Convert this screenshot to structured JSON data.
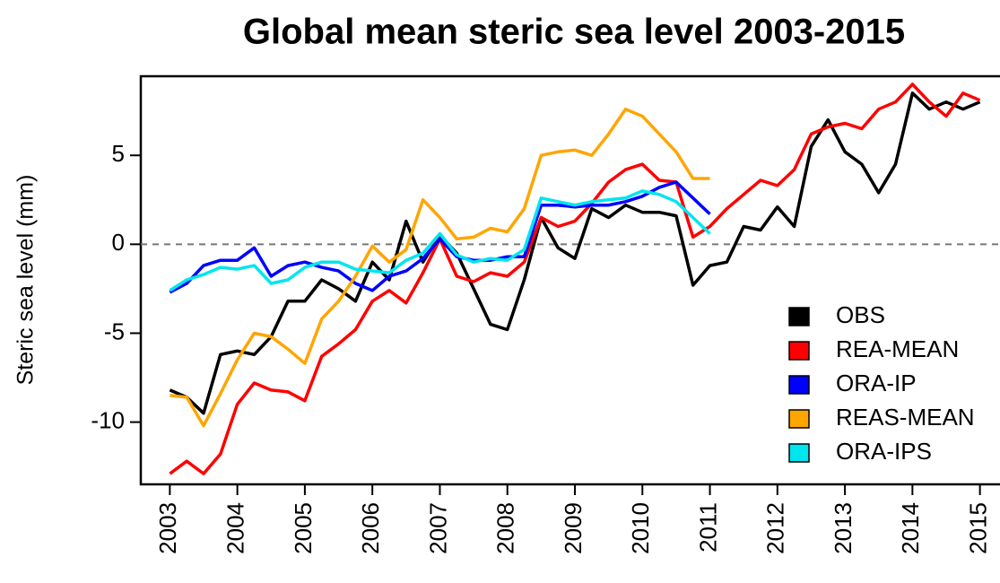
{
  "chart_data": {
    "type": "line",
    "title": "Global mean steric sea level 2003-2015",
    "y_label": "Steric sea level (mm)",
    "x": [
      2003,
      2003.25,
      2003.5,
      2003.75,
      2004,
      2004.25,
      2004.5,
      2004.75,
      2005,
      2005.25,
      2005.5,
      2005.75,
      2006,
      2006.25,
      2006.5,
      2006.75,
      2007,
      2007.25,
      2007.5,
      2007.75,
      2008,
      2008.25,
      2008.5,
      2008.75,
      2009,
      2009.25,
      2009.5,
      2009.75,
      2010,
      2010.25,
      2010.5,
      2010.75,
      2011,
      2011.25,
      2011.5,
      2011.75,
      2012,
      2012.25,
      2012.5,
      2012.75,
      2013,
      2013.25,
      2013.5,
      2013.75,
      2014,
      2014.25,
      2014.5,
      2014.75,
      2015
    ],
    "series": [
      {
        "name": "OBS",
        "color": "#000000",
        "values": [
          -8.2,
          -8.6,
          -9.5,
          -6.2,
          -6.0,
          -6.2,
          -5.2,
          -3.2,
          -3.2,
          -2.0,
          -2.5,
          -3.2,
          -1.0,
          -2.0,
          1.3,
          -1.0,
          0.5,
          -0.5,
          -2.5,
          -4.5,
          -4.8,
          -2.0,
          1.5,
          -0.2,
          -0.8,
          2.0,
          1.5,
          2.2,
          1.8,
          1.8,
          1.6,
          -2.3,
          -1.2,
          -1.0,
          1.0,
          0.8,
          2.1,
          1.0,
          5.5,
          7.0,
          5.2,
          4.5,
          2.9,
          4.5,
          8.5,
          7.6,
          8.0,
          7.6,
          8.0
        ]
      },
      {
        "name": "REA-MEAN",
        "color": "#ff0000",
        "values": [
          -12.9,
          -12.2,
          -12.9,
          -11.8,
          -9.0,
          -7.8,
          -8.2,
          -8.3,
          -8.8,
          -6.3,
          -5.6,
          -4.8,
          -3.2,
          -2.6,
          -3.3,
          -1.6,
          0.3,
          -1.8,
          -2.1,
          -1.6,
          -1.8,
          -1.0,
          1.5,
          1.0,
          1.3,
          2.3,
          3.5,
          4.2,
          4.5,
          3.6,
          3.5,
          0.4,
          1.0,
          2.0,
          2.8,
          3.6,
          3.3,
          4.2,
          6.2,
          6.6,
          6.8,
          6.5,
          7.6,
          8.0,
          9.0,
          8.0,
          7.2,
          8.5,
          8.1
        ]
      },
      {
        "name": "ORA-IP",
        "color": "#0000ff",
        "values": [
          -2.7,
          -2.2,
          -1.2,
          -0.9,
          -0.9,
          -0.2,
          -1.8,
          -1.2,
          -1.0,
          -1.3,
          -1.5,
          -2.2,
          -2.6,
          -1.8,
          -1.5,
          -0.8,
          0.3,
          -0.7,
          -0.9,
          -0.9,
          -0.7,
          -0.7,
          2.2,
          2.2,
          2.1,
          2.2,
          2.2,
          2.4,
          2.7,
          3.2,
          3.5,
          2.6,
          1.7,
          null,
          null,
          null,
          null,
          null,
          null,
          null,
          null,
          null,
          null,
          null,
          null,
          null,
          null,
          null,
          null
        ]
      },
      {
        "name": "REAS-MEAN",
        "color": "#ffa500",
        "values": [
          -8.5,
          -8.6,
          -10.2,
          -8.4,
          -6.5,
          -5.0,
          -5.2,
          -5.9,
          -6.7,
          -4.2,
          -3.2,
          -1.8,
          -0.1,
          -1.0,
          -0.3,
          2.5,
          1.5,
          0.3,
          0.4,
          0.9,
          0.7,
          2.0,
          5.0,
          5.2,
          5.3,
          5.0,
          6.2,
          7.6,
          7.2,
          6.2,
          5.2,
          3.7,
          3.7,
          null,
          null,
          null,
          null,
          null,
          null,
          null,
          null,
          null,
          null,
          null,
          null,
          null,
          null,
          null,
          null
        ]
      },
      {
        "name": "ORA-IPS",
        "color": "#00e5ee",
        "values": [
          -2.6,
          -2.0,
          -1.7,
          -1.3,
          -1.4,
          -1.2,
          -2.2,
          -2.0,
          -1.3,
          -1.0,
          -1.0,
          -1.4,
          -1.5,
          -1.6,
          -0.9,
          -0.5,
          0.6,
          -0.6,
          -1.0,
          -0.8,
          -0.9,
          -0.3,
          2.6,
          2.4,
          2.2,
          2.4,
          2.5,
          2.6,
          3.0,
          2.8,
          2.4,
          1.5,
          0.6,
          null,
          null,
          null,
          null,
          null,
          null,
          null,
          null,
          null,
          null,
          null,
          null,
          null,
          null,
          null,
          null
        ]
      }
    ],
    "xlim": [
      2002.57,
      2015.43
    ],
    "ylim": [
      -13.5,
      9.45
    ],
    "xticks": [
      2003,
      2004,
      2005,
      2006,
      2007,
      2008,
      2009,
      2010,
      2011,
      2012,
      2013,
      2014,
      2015
    ],
    "yticks": [
      -10,
      -5,
      0,
      5
    ],
    "reference_line": 0,
    "legend": "right"
  }
}
